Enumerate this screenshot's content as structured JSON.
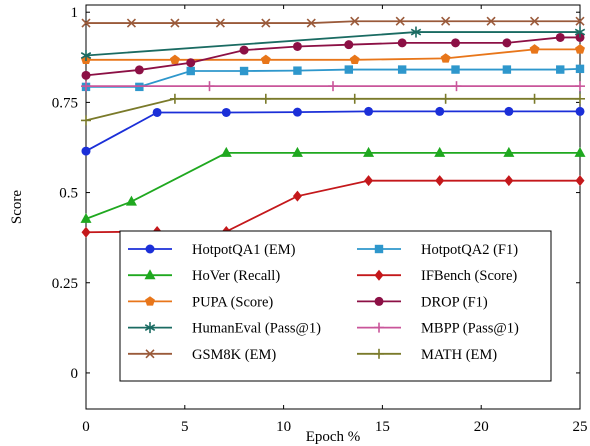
{
  "chart_data": {
    "type": "line",
    "title": "",
    "xlabel": "Epoch %",
    "ylabel": "Score",
    "xlim": [
      0,
      25
    ],
    "ylim": [
      -0.1,
      1.02
    ],
    "xticks": [
      0,
      5,
      10,
      15,
      20,
      25
    ],
    "yticks": [
      0,
      0.25,
      0.5,
      0.75,
      1
    ],
    "xtick_labels": [
      "0",
      "5",
      "10",
      "15",
      "20",
      "25"
    ],
    "ytick_labels": [
      "0",
      "0.25",
      "0.5",
      "0.75",
      "1"
    ],
    "grid": false,
    "legend": {
      "placement": "lower-center",
      "columns": 2
    },
    "series": [
      {
        "name": "HotpotQA1 (EM)",
        "color": "#1b2fd8",
        "marker": "circle",
        "x": [
          0,
          3.6,
          7.1,
          10.7,
          14.3,
          17.9,
          21.4,
          25.0
        ],
        "y": [
          0.615,
          0.722,
          0.722,
          0.723,
          0.725,
          0.725,
          0.725,
          0.725
        ]
      },
      {
        "name": "HotpotQA2 (F1)",
        "color": "#2e97cc",
        "marker": "square",
        "x": [
          0,
          2.7,
          5.3,
          8.0,
          10.7,
          13.3,
          16.0,
          18.7,
          21.3,
          24.0,
          25.0
        ],
        "y": [
          0.793,
          0.793,
          0.837,
          0.837,
          0.838,
          0.841,
          0.841,
          0.841,
          0.841,
          0.841,
          0.843
        ]
      },
      {
        "name": "HoVer (Recall)",
        "color": "#1fa81f",
        "marker": "triangle",
        "x": [
          0,
          2.3,
          7.1,
          10.7,
          14.3,
          17.9,
          21.4,
          25.0
        ],
        "y": [
          0.427,
          0.475,
          0.61,
          0.61,
          0.61,
          0.61,
          0.61,
          0.61
        ]
      },
      {
        "name": "IFBench (Score)",
        "color": "#c4181b",
        "marker": "diamond",
        "x": [
          0,
          3.6,
          7.1,
          10.7,
          14.3,
          17.9,
          21.4,
          25.0
        ],
        "y": [
          0.39,
          0.392,
          0.392,
          0.49,
          0.533,
          0.533,
          0.533,
          0.533
        ]
      },
      {
        "name": "PUPA (Score)",
        "color": "#e8761a",
        "marker": "pentagon",
        "x": [
          0,
          4.5,
          9.1,
          13.6,
          18.2,
          22.7,
          25.0
        ],
        "y": [
          0.868,
          0.868,
          0.868,
          0.868,
          0.872,
          0.897,
          0.897
        ]
      },
      {
        "name": "DROP (F1)",
        "color": "#8c1045",
        "marker": "circle",
        "x": [
          0,
          2.7,
          5.3,
          8.0,
          10.7,
          13.3,
          16.0,
          18.7,
          21.3,
          24.0,
          25.0
        ],
        "y": [
          0.825,
          0.84,
          0.86,
          0.895,
          0.905,
          0.91,
          0.915,
          0.915,
          0.915,
          0.93,
          0.93
        ]
      },
      {
        "name": "HumanEval (Pass@1)",
        "color": "#1a6b62",
        "marker": "star",
        "x": [
          0,
          16.7,
          25.0
        ],
        "y": [
          0.88,
          0.945,
          0.945
        ]
      },
      {
        "name": "MBPP (Pass@1)",
        "color": "#c9559a",
        "marker": "plus",
        "x": [
          0,
          6.25,
          12.5,
          18.75,
          25.0
        ],
        "y": [
          0.795,
          0.795,
          0.795,
          0.795,
          0.795
        ]
      },
      {
        "name": "GSM8K (EM)",
        "color": "#9a5a3a",
        "marker": "x",
        "x": [
          0,
          2.3,
          4.5,
          6.8,
          9.1,
          11.4,
          13.6,
          15.9,
          18.2,
          20.5,
          22.7,
          25.0
        ],
        "y": [
          0.97,
          0.97,
          0.97,
          0.97,
          0.97,
          0.97,
          0.975,
          0.975,
          0.975,
          0.975,
          0.975,
          0.975
        ]
      },
      {
        "name": "MATH (EM)",
        "color": "#7a7a2a",
        "marker": "plus",
        "x": [
          0,
          4.5,
          9.1,
          13.6,
          18.2,
          22.7,
          25.0
        ],
        "y": [
          0.7,
          0.76,
          0.76,
          0.76,
          0.76,
          0.76,
          0.76
        ]
      }
    ]
  }
}
